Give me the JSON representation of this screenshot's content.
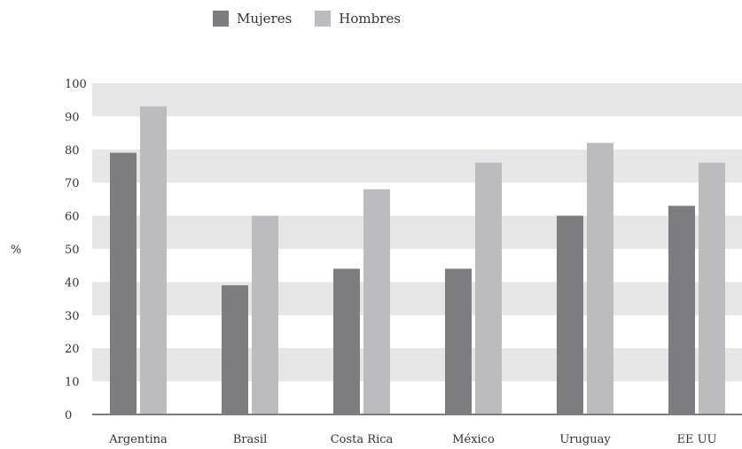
{
  "chart_data": {
    "type": "bar",
    "categories": [
      "Argentina",
      "Brasil",
      "Costa Rica",
      "México",
      "Uruguay",
      "EE UU"
    ],
    "series": [
      {
        "name": "Mujeres",
        "values": [
          79,
          39,
          44,
          44,
          60,
          63
        ],
        "color": "#7d7d80"
      },
      {
        "name": "Hombres",
        "values": [
          93,
          60,
          68,
          76,
          82,
          76
        ],
        "color": "#bcbcbe"
      }
    ],
    "ylabel": "%",
    "xlabel": "",
    "ylim": [
      0,
      100
    ],
    "yticks": [
      0,
      10,
      20,
      30,
      40,
      50,
      60,
      70,
      80,
      90,
      100
    ],
    "banded_background": true,
    "band_color": "#e6e6e7",
    "legend_position": "top-center"
  }
}
